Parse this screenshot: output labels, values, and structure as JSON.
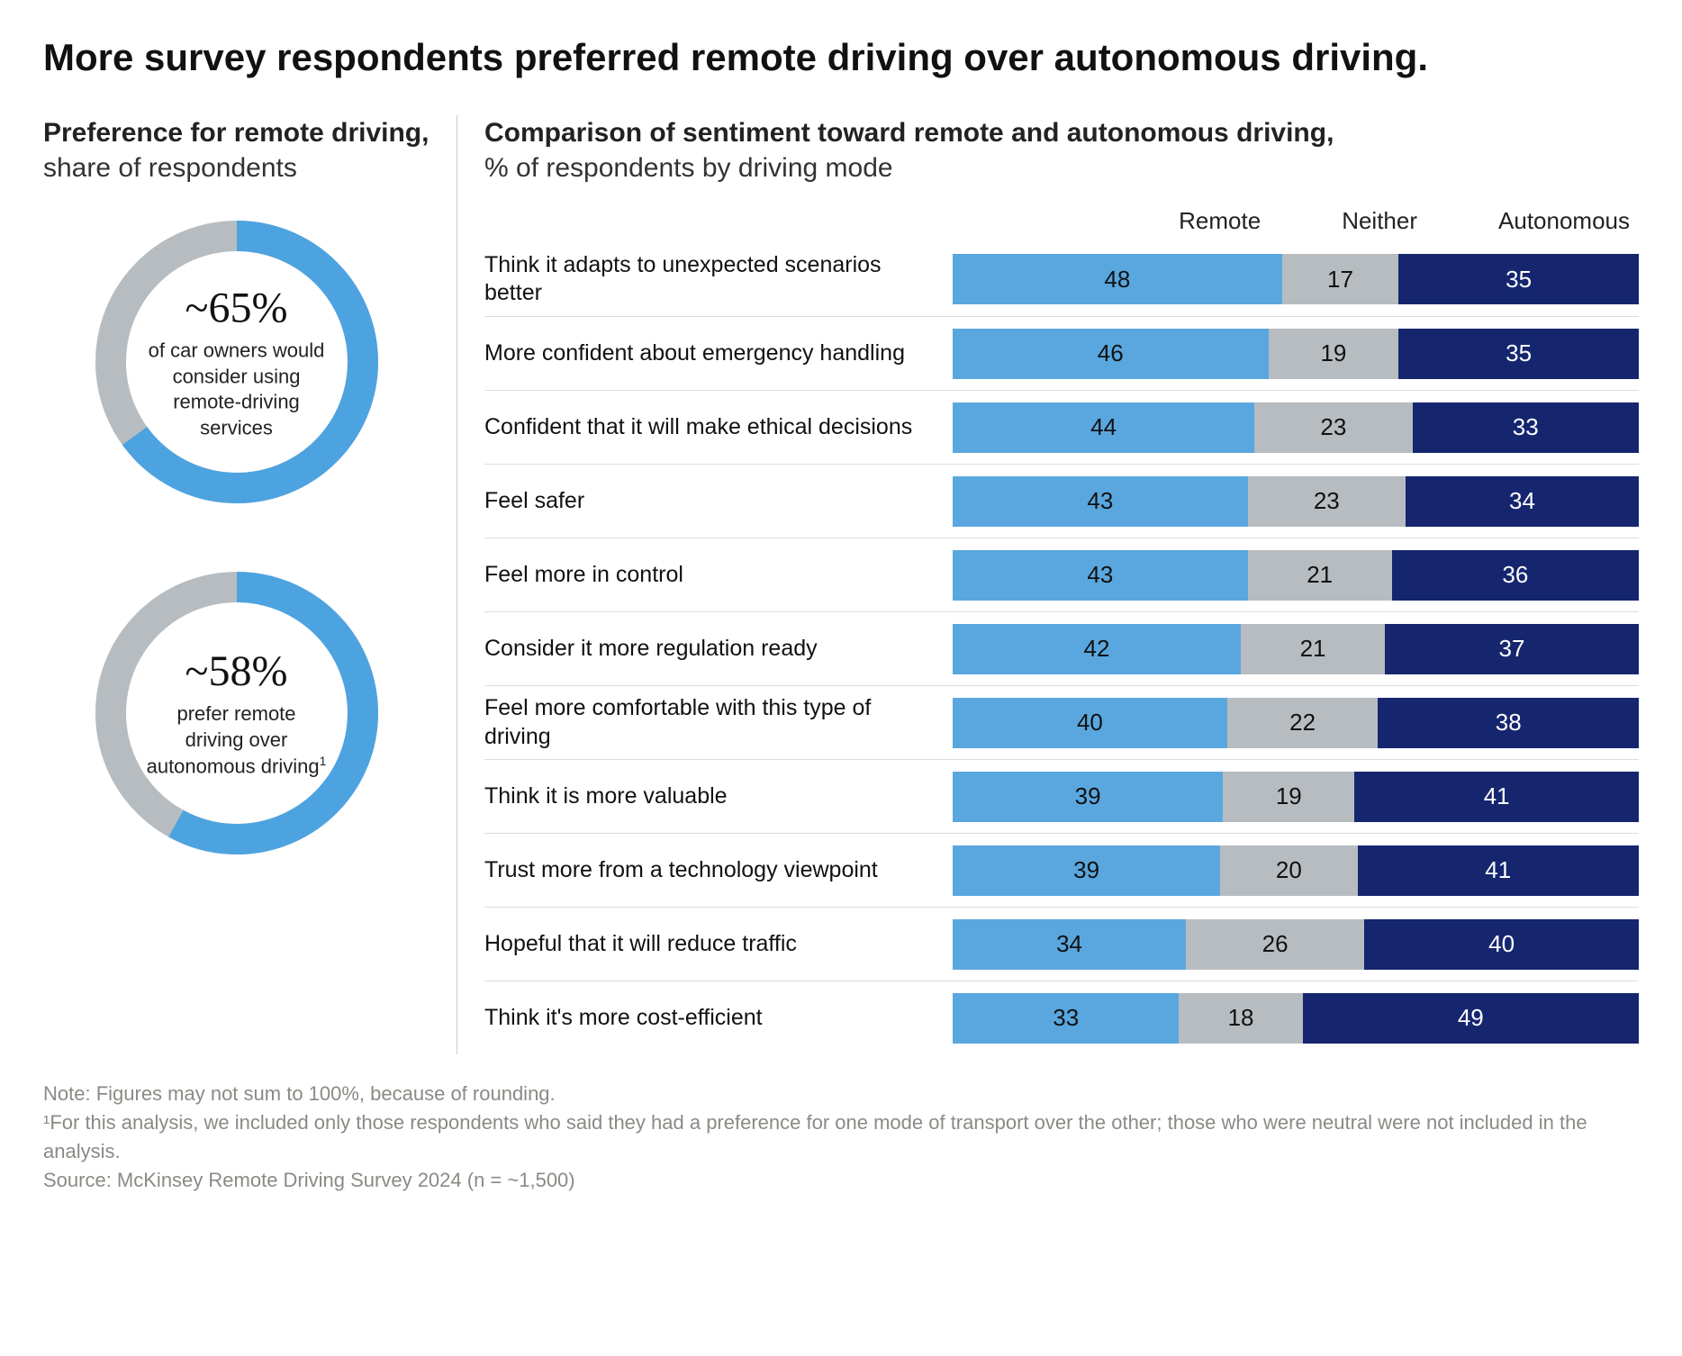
{
  "headline": "More survey respondents preferred remote driving over autonomous driving.",
  "left": {
    "title_bold": "Preference for remote driving,",
    "title_light": "share of respondents",
    "donut1": {
      "value_label": "~65%",
      "percent": 65,
      "caption": "of car owners would consider using remote-driving services",
      "footnote_mark": ""
    },
    "donut2": {
      "value_label": "~58%",
      "percent": 58,
      "caption": "prefer remote driving over autonomous driving",
      "footnote_mark": "1"
    },
    "donut_style": {
      "fg_color": "#4da3e0",
      "bg_color": "#b7bcc0",
      "stroke_width": 34,
      "radius": 140
    }
  },
  "right": {
    "title_bold": "Comparison of sentiment toward remote and autonomous driving,",
    "title_light": "% of respondents by driving mode",
    "legend": {
      "remote": "Remote",
      "neither": "Neither",
      "autonomous": "Autonomous"
    },
    "colors": {
      "remote": "#5aa7df",
      "neither": "#b7bcc0",
      "autonomous": "#15266f",
      "remote_text": "#111111",
      "neither_text": "#111111",
      "autonomous_text": "#ffffff"
    },
    "rows": [
      {
        "label": "Think it adapts to unexpected scenarios better",
        "remote": 48,
        "neither": 17,
        "autonomous": 35
      },
      {
        "label": "More confident about emergency handling",
        "remote": 46,
        "neither": 19,
        "autonomous": 35
      },
      {
        "label": "Confident that it will make ethical decisions",
        "remote": 44,
        "neither": 23,
        "autonomous": 33
      },
      {
        "label": "Feel safer",
        "remote": 43,
        "neither": 23,
        "autonomous": 34
      },
      {
        "label": "Feel more in control",
        "remote": 43,
        "neither": 21,
        "autonomous": 36
      },
      {
        "label": "Consider it more regulation ready",
        "remote": 42,
        "neither": 21,
        "autonomous": 37
      },
      {
        "label": "Feel more comfortable with this type of driving",
        "remote": 40,
        "neither": 22,
        "autonomous": 38
      },
      {
        "label": "Think it is more valuable",
        "remote": 39,
        "neither": 19,
        "autonomous": 41
      },
      {
        "label": "Trust more from a technology viewpoint",
        "remote": 39,
        "neither": 20,
        "autonomous": 41
      },
      {
        "label": "Hopeful that it will reduce traffic",
        "remote": 34,
        "neither": 26,
        "autonomous": 40
      },
      {
        "label": "Think it's more cost-efficient",
        "remote": 33,
        "neither": 18,
        "autonomous": 49
      }
    ]
  },
  "footnotes": {
    "note": "Note: Figures may not sum to 100%, because of rounding.",
    "fn1": "¹For this analysis, we included only those respondents who said they had a preference for one mode of transport over the other; those who were neutral were not included in the analysis.",
    "source": "Source: McKinsey Remote Driving Survey 2024 (n = ~1,500)"
  }
}
